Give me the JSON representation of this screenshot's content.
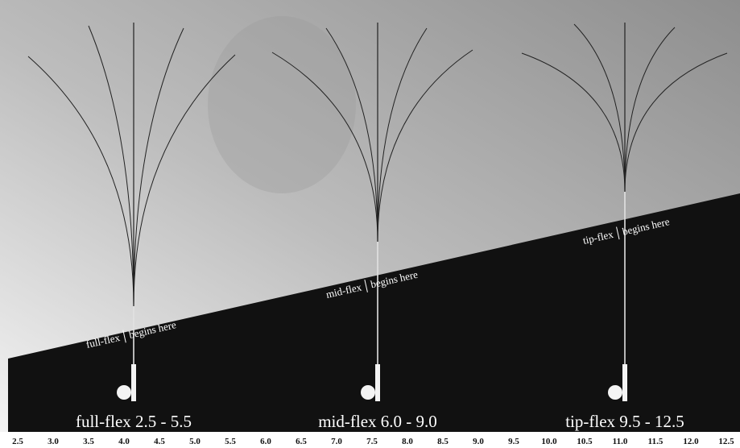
{
  "rods": [
    {
      "flex_label": "full-flex",
      "begins_label": "begins here",
      "range_label": "full-flex 2.5 - 5.5"
    },
    {
      "flex_label": "mid-flex",
      "begins_label": "begins here",
      "range_label": "mid-flex 6.0 - 9.0"
    },
    {
      "flex_label": "tip-flex",
      "begins_label": "begins here",
      "range_label": "tip-flex 9.5 - 12.5"
    }
  ],
  "scale": [
    "2.5",
    "3.0",
    "3.5",
    "4.0",
    "4.5",
    "5.0",
    "5.5",
    "6.0",
    "6.5",
    "7.0",
    "7.5",
    "8.0",
    "8.5",
    "9.0",
    "9.5",
    "10.0",
    "10.5",
    "11.0",
    "11.5",
    "12.0",
    "12.5"
  ]
}
